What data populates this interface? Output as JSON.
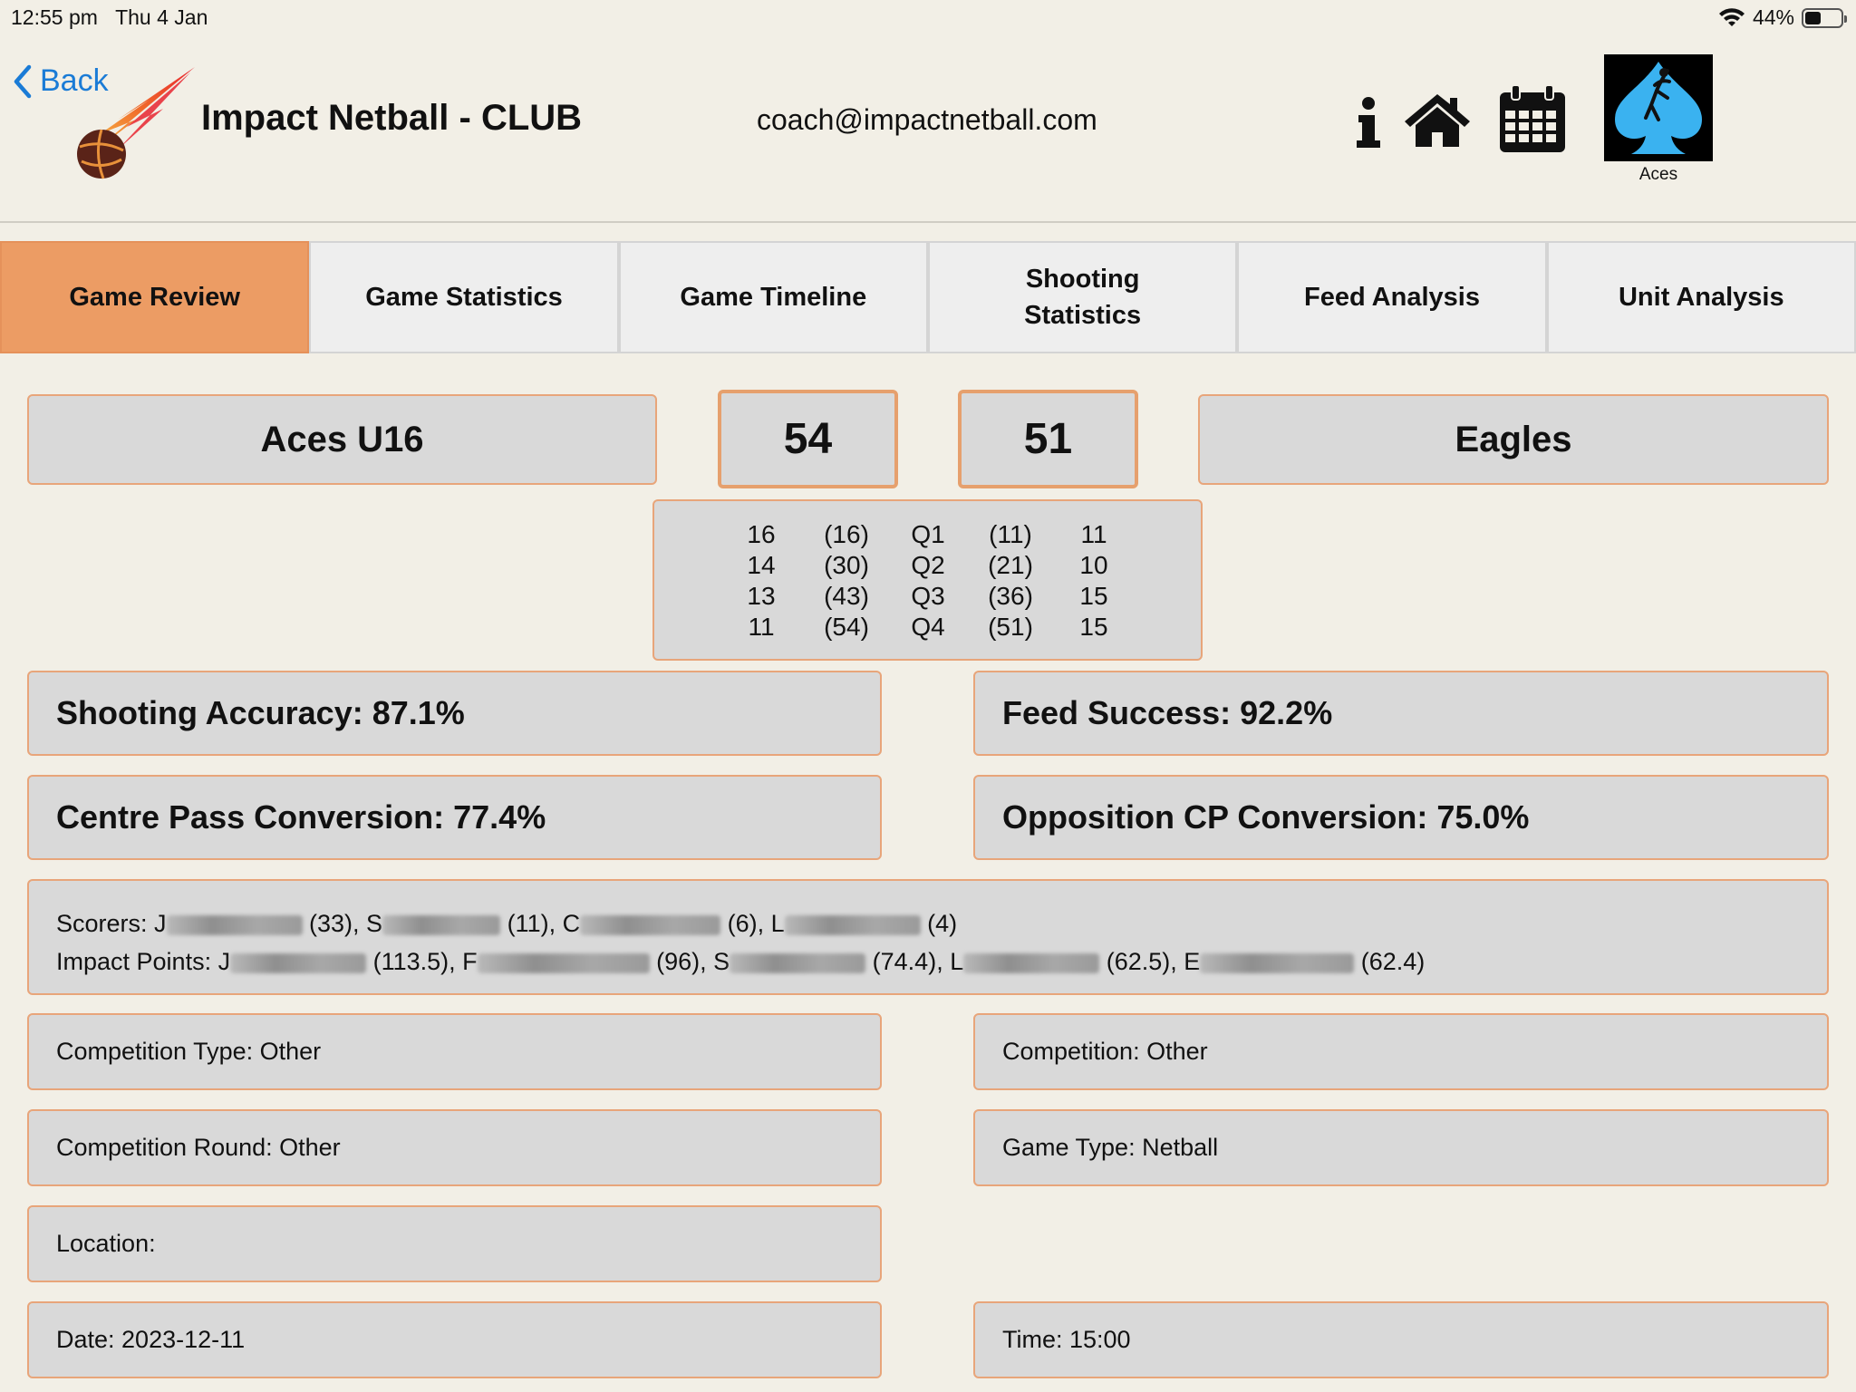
{
  "status": {
    "time": "12:55 pm",
    "date": "Thu 4 Jan",
    "battery": "44%",
    "battery_fraction": 0.44
  },
  "header": {
    "back_label": "Back",
    "club_title": "Impact Netball - CLUB",
    "email": "coach@impactnetball.com",
    "team_badge_label": "Aces",
    "icons": [
      "info-icon",
      "home-icon",
      "calendar-icon"
    ]
  },
  "tabs": [
    {
      "line1": "Game Review",
      "line2": "",
      "active": true
    },
    {
      "line1": "Game Statistics",
      "line2": "",
      "active": false
    },
    {
      "line1": "Game Timeline",
      "line2": "",
      "active": false
    },
    {
      "line1": "Shooting",
      "line2": "Statistics",
      "active": false
    },
    {
      "line1": "Feed Analysis",
      "line2": "",
      "active": false
    },
    {
      "line1": "Unit Analysis",
      "line2": "",
      "active": false
    }
  ],
  "scoreboard": {
    "home_team": "Aces  U16",
    "home_score": "54",
    "away_score": "51",
    "away_team": "Eagles"
  },
  "quarters": {
    "home_q": [
      "16",
      "14",
      "13",
      "11"
    ],
    "home_cum": [
      "(16)",
      "(30)",
      "(43)",
      "(54)"
    ],
    "labels": [
      "Q1",
      "Q2",
      "Q3",
      "Q4"
    ],
    "away_cum": [
      "(11)",
      "(21)",
      "(36)",
      "(51)"
    ],
    "away_q": [
      "11",
      "10",
      "15",
      "15"
    ]
  },
  "stats": {
    "shooting_accuracy": "Shooting Accuracy:  87.1%",
    "feed_success": "Feed Success:  92.2%",
    "centre_pass": "Centre Pass Conversion:  77.4%",
    "opposition_cp": "Opposition CP Conversion:  75.0%"
  },
  "scorers": {
    "scorers_prefix": "Scorers: J",
    "s1": " (33), S",
    "s2": " (11), C",
    "s3": " (6), L",
    "s4": " (4)",
    "impact_prefix": "Impact Points: J",
    "i1": " (113.5), F",
    "i2": " (96), S",
    "i3": " (74.4), L",
    "i4": " (62.5), E",
    "i5": " (62.4)"
  },
  "details": {
    "competition_type": "Competition Type: Other",
    "competition": "Competition: Other",
    "competition_round": "Competition Round: Other",
    "game_type": "Game Type: Netball",
    "location": "Location:",
    "date": "Date: 2023-12-11",
    "time": "Time: 15:00"
  }
}
